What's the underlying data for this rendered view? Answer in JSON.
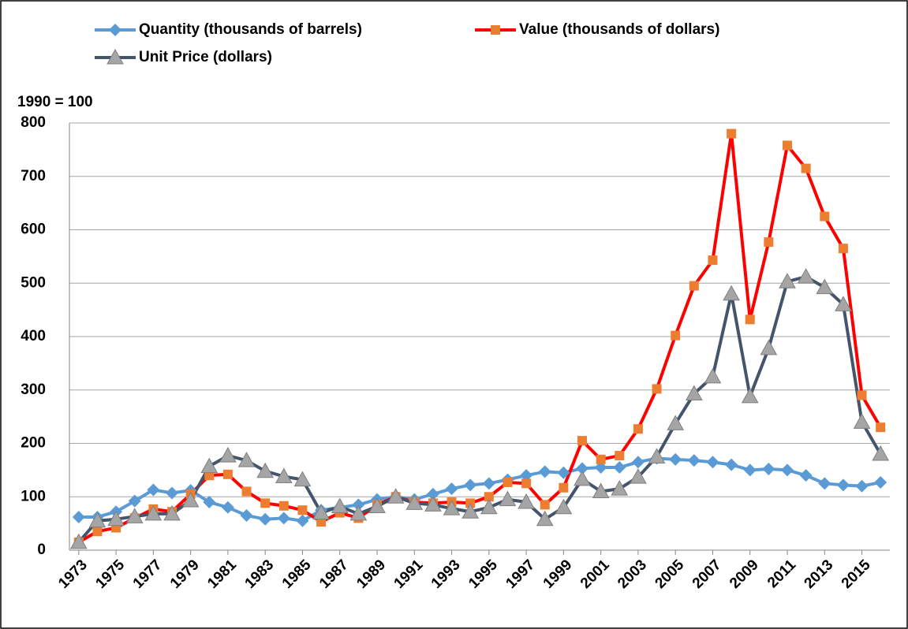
{
  "chart_data": {
    "type": "line",
    "annotation": "1990 = 100",
    "x": [
      1973,
      1974,
      1975,
      1976,
      1977,
      1978,
      1979,
      1980,
      1981,
      1982,
      1983,
      1984,
      1985,
      1986,
      1987,
      1988,
      1989,
      1990,
      1991,
      1992,
      1993,
      1994,
      1995,
      1996,
      1997,
      1998,
      1999,
      2000,
      2001,
      2002,
      2003,
      2004,
      2005,
      2006,
      2007,
      2008,
      2009,
      2010,
      2011,
      2012,
      2013,
      2014,
      2015,
      2016
    ],
    "xlim": [
      1972.5,
      2016.5
    ],
    "xticks": [
      1973,
      1975,
      1977,
      1979,
      1981,
      1983,
      1985,
      1987,
      1989,
      1991,
      1993,
      1995,
      1997,
      1999,
      2001,
      2003,
      2005,
      2007,
      2009,
      2011,
      2013,
      2015
    ],
    "ylim": [
      0,
      800
    ],
    "yticks": [
      0,
      100,
      200,
      300,
      400,
      500,
      600,
      700,
      800
    ],
    "grid": true,
    "legend": "top",
    "series": [
      {
        "name": "Quantity (thousands of barrels)",
        "color": "#5b9bd5",
        "marker": "diamond",
        "values": [
          62,
          62,
          72,
          92,
          113,
          107,
          112,
          90,
          80,
          65,
          58,
          60,
          55,
          75,
          80,
          85,
          95,
          100,
          95,
          105,
          115,
          122,
          125,
          132,
          140,
          147,
          145,
          153,
          155,
          155,
          165,
          172,
          170,
          168,
          165,
          160,
          150,
          152,
          150,
          140,
          125,
          122,
          120,
          127
        ]
      },
      {
        "name": "Value (thousands of dollars)",
        "color": "#ff0000",
        "marker_color": "#ed7d31",
        "marker": "square",
        "values": [
          15,
          35,
          42,
          60,
          77,
          72,
          105,
          140,
          142,
          110,
          88,
          83,
          75,
          53,
          70,
          60,
          85,
          100,
          90,
          88,
          90,
          88,
          100,
          127,
          125,
          85,
          117,
          205,
          170,
          177,
          227,
          302,
          402,
          495,
          543,
          780,
          432,
          577,
          758,
          715,
          625,
          565,
          290,
          230
        ]
      },
      {
        "name": "Unit Price (dollars)",
        "color": "#44546a",
        "marker_color": "#a5a5a5",
        "marker": "triangle",
        "values": [
          15,
          55,
          58,
          63,
          68,
          68,
          93,
          157,
          177,
          168,
          148,
          138,
          132,
          70,
          82,
          68,
          82,
          100,
          88,
          85,
          78,
          72,
          80,
          95,
          90,
          58,
          80,
          133,
          110,
          115,
          137,
          175,
          237,
          293,
          325,
          480,
          288,
          378,
          503,
          512,
          492,
          460,
          240,
          180
        ]
      }
    ]
  }
}
